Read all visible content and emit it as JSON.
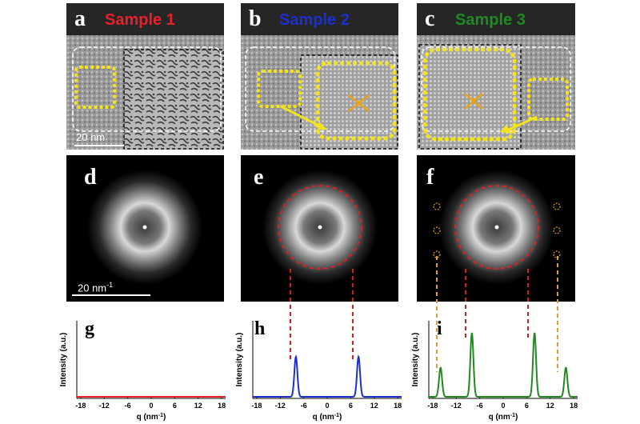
{
  "figure": {
    "panels": [
      {
        "letter": "a",
        "label_color": "#ffffff",
        "title": "Sample 1",
        "title_color": "#e8202a"
      },
      {
        "letter": "b",
        "label_color": "#ffffff",
        "title": "Sample 2",
        "title_color": "#1c2fd0"
      },
      {
        "letter": "c",
        "label_color": "#ffffff",
        "title": "Sample 3",
        "title_color": "#1f8a1f"
      },
      {
        "letter": "d",
        "label_color": "#ffffff"
      },
      {
        "letter": "e",
        "label_color": "#ffffff"
      },
      {
        "letter": "f",
        "label_color": "#ffffff"
      }
    ],
    "scale_bar_real": "20 nm",
    "scale_bar_fft": "20 nm",
    "scale_bar_fft_sup": "-1"
  },
  "chart_data": [
    {
      "type": "line",
      "panel": "g",
      "ylabel": "Intensity (a.u.)",
      "xlabel": "q (nm",
      "xlabel_sup": "-1",
      "xlabel_end": ")",
      "xlim": [
        -19,
        19
      ],
      "xticks": [
        "-18",
        "-12",
        "-6",
        "0",
        "6",
        "12",
        "18"
      ],
      "color": "#e8202a",
      "peaks": []
    },
    {
      "type": "line",
      "panel": "h",
      "ylabel": "Intensity (a.u.)",
      "xlabel": "q (nm",
      "xlabel_sup": "-1",
      "xlabel_end": ")",
      "xlim": [
        -19,
        19
      ],
      "xticks": [
        "-18",
        "-12",
        "-6",
        "0",
        "6",
        "12",
        "18"
      ],
      "color": "#1c2fd0",
      "peaks": [
        {
          "q": -8,
          "height": 0.55
        },
        {
          "q": 8,
          "height": 0.55
        }
      ]
    },
    {
      "type": "line",
      "panel": "i",
      "ylabel": "Intensity (a.u.)",
      "xlabel": "q (nm",
      "xlabel_sup": "-1",
      "xlabel_end": ")",
      "xlim": [
        -19,
        19
      ],
      "xticks": [
        "-18",
        "-12",
        "-6",
        "0",
        "6",
        "12",
        "18"
      ],
      "color": "#1f8a1f",
      "peaks": [
        {
          "q": -16,
          "height": 0.4
        },
        {
          "q": -8,
          "height": 0.88
        },
        {
          "q": 8,
          "height": 0.88
        },
        {
          "q": 16,
          "height": 0.4
        }
      ]
    }
  ]
}
